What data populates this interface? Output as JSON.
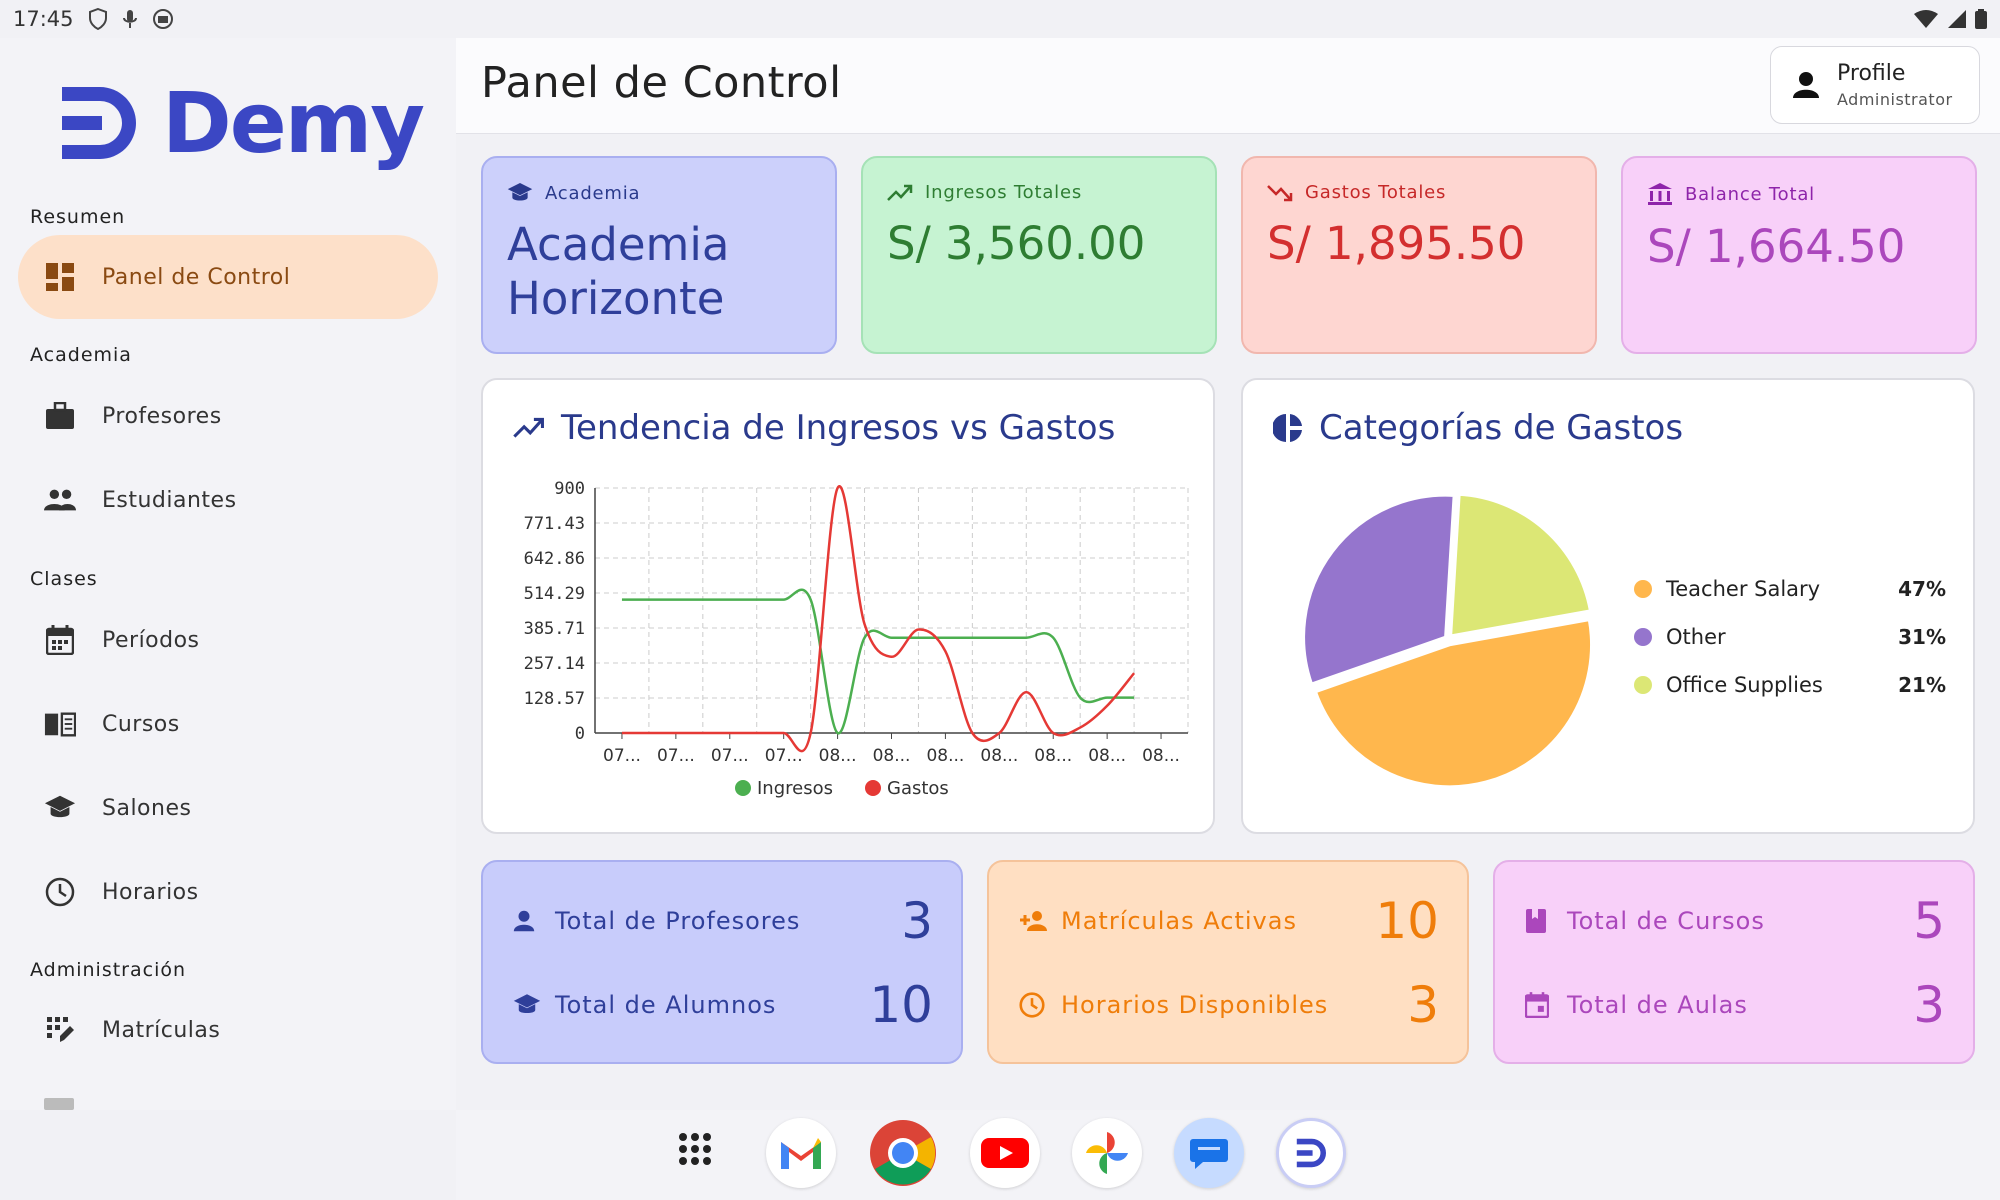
{
  "status_bar": {
    "time": "17:45"
  },
  "sidebar": {
    "logo_text": "Demy",
    "sections": [
      {
        "title": "Resumen"
      },
      {
        "title": "Academia"
      },
      {
        "title": "Clases"
      },
      {
        "title": "Administración"
      }
    ],
    "items": [
      {
        "label": "Panel de Control",
        "icon": "dashboard-icon",
        "active": true
      },
      {
        "label": "Profesores",
        "icon": "briefcase-icon"
      },
      {
        "label": "Estudiantes",
        "icon": "people-icon"
      },
      {
        "label": "Períodos",
        "icon": "calendar-icon"
      },
      {
        "label": "Cursos",
        "icon": "book-icon"
      },
      {
        "label": "Salones",
        "icon": "school-icon"
      },
      {
        "label": "Horarios",
        "icon": "clock-icon"
      },
      {
        "label": "Matrículas",
        "icon": "grid-icon"
      }
    ]
  },
  "header": {
    "title": "Panel de Control",
    "profile": {
      "name": "Profile",
      "role": "Administrator"
    }
  },
  "stat_cards": [
    {
      "label": "Academia",
      "value": "Academia Horizonte",
      "icon": "school-icon"
    },
    {
      "label": "Ingresos Totales",
      "value": "S/ 3,560.00",
      "icon": "trending-up-icon"
    },
    {
      "label": "Gastos Totales",
      "value": "S/ 1,895.50",
      "icon": "trending-down-icon"
    },
    {
      "label": "Balance Total",
      "value": "S/ 1,664.50",
      "icon": "bank-icon"
    }
  ],
  "trend_panel": {
    "title": "Tendencia de Ingresos vs Gastos"
  },
  "categories_panel": {
    "title": "Categorías de Gastos"
  },
  "bottom_cards": [
    {
      "rows": [
        {
          "label": "Total de Profesores",
          "value": "3",
          "icon": "person-icon"
        },
        {
          "label": "Total de Alumnos",
          "value": "10",
          "icon": "school-icon"
        }
      ]
    },
    {
      "rows": [
        {
          "label": "Matrículas Activas",
          "value": "10",
          "icon": "person-add-icon"
        },
        {
          "label": "Horarios Disponibles",
          "value": "3",
          "icon": "clock-icon"
        }
      ]
    },
    {
      "rows": [
        {
          "label": "Total de Cursos",
          "value": "5",
          "icon": "book-icon"
        },
        {
          "label": "Total de Aulas",
          "value": "3",
          "icon": "calendar-icon"
        }
      ]
    }
  ],
  "colors": {
    "ingresos": "#4caf50",
    "gastos": "#e53935",
    "teacher_salary": "#ffb74d",
    "other": "#9575cd",
    "office_supplies": "#dce775"
  },
  "chart_data": [
    {
      "type": "line",
      "title": "Tendencia de Ingresos vs Gastos",
      "categories": [
        "07...",
        "07...",
        "07...",
        "07...",
        "08...",
        "08...",
        "08...",
        "08...",
        "08...",
        "08...",
        "08..."
      ],
      "y_ticks": [
        "0",
        "128.57",
        "257.14",
        "385.71",
        "514.29",
        "642.86",
        "771.43",
        "900"
      ],
      "ylim": [
        0,
        900
      ],
      "grid": true,
      "legend_position": "bottom",
      "series": [
        {
          "name": "Ingresos",
          "color": "#4caf50",
          "x": [
            0.5,
            1,
            1.5,
            2,
            2.5,
            3,
            3.5,
            4,
            4.5,
            5,
            5.5,
            6,
            6.5,
            7,
            7.5,
            8,
            8.5,
            9,
            9.5,
            10
          ],
          "values": [
            490,
            490,
            490,
            490,
            490,
            490,
            490,
            490,
            0,
            350,
            350,
            350,
            350,
            350,
            350,
            350,
            350,
            130,
            130,
            130
          ]
        },
        {
          "name": "Gastos",
          "color": "#e53935",
          "x": [
            0.5,
            1,
            1.5,
            2,
            2.5,
            3,
            3.5,
            4,
            4.5,
            5,
            5.5,
            6,
            6.5,
            7,
            7.5,
            8,
            8.5,
            9,
            9.5,
            10
          ],
          "values": [
            0,
            0,
            0,
            0,
            0,
            0,
            0,
            0,
            900,
            400,
            280,
            380,
            300,
            0,
            0,
            150,
            0,
            20,
            100,
            220
          ]
        }
      ]
    },
    {
      "type": "pie",
      "title": "Categorías de Gastos",
      "labels": [
        "Teacher Salary",
        "Other",
        "Office Supplies"
      ],
      "values": [
        47,
        31,
        21
      ],
      "value_labels": [
        "47%",
        "31%",
        "21%"
      ],
      "colors": [
        "#ffb74d",
        "#9575cd",
        "#dce775"
      ]
    }
  ]
}
